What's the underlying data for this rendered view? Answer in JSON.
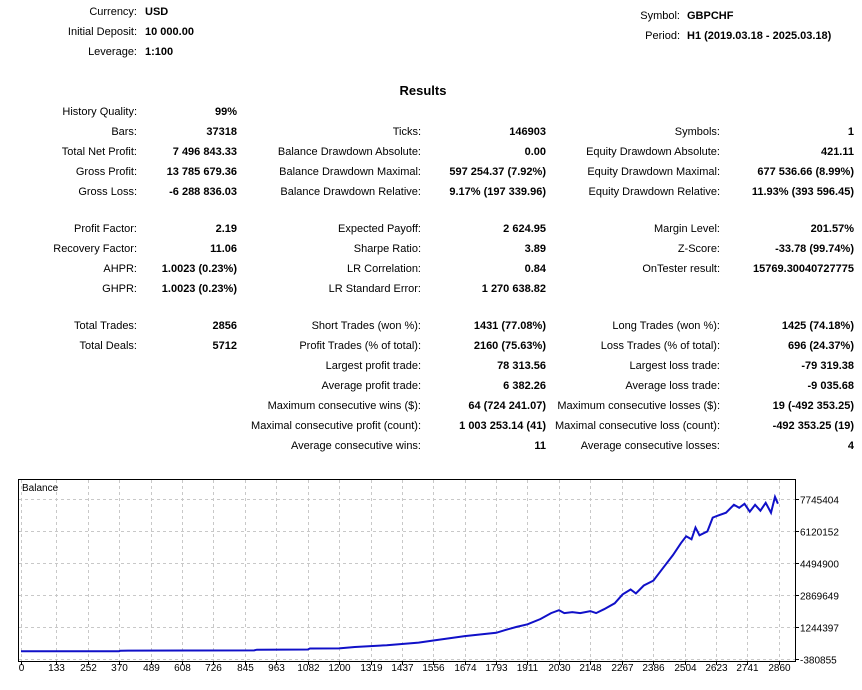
{
  "header": {
    "left": [
      {
        "label": "Currency:",
        "value": "USD"
      },
      {
        "label": "Initial Deposit:",
        "value": "10 000.00"
      },
      {
        "label": "Leverage:",
        "value": "1:100"
      }
    ],
    "right": [
      {
        "label": "Symbol:",
        "value": "GBPCHF"
      },
      {
        "label": "Period:",
        "value": "H1 (2019.03.18 - 2025.03.18)"
      }
    ]
  },
  "results_title": "Results",
  "sections": [
    [
      [
        [
          "History Quality:",
          "99%"
        ],
        null,
        null
      ],
      [
        [
          "Bars:",
          "37318"
        ],
        [
          "Ticks:",
          "146903"
        ],
        [
          "Symbols:",
          "1"
        ]
      ],
      [
        [
          "Total Net Profit:",
          "7 496 843.33"
        ],
        [
          "Balance Drawdown Absolute:",
          "0.00"
        ],
        [
          "Equity Drawdown Absolute:",
          "421.11"
        ]
      ],
      [
        [
          "Gross Profit:",
          "13 785 679.36"
        ],
        [
          "Balance Drawdown Maximal:",
          "597 254.37 (7.92%)"
        ],
        [
          "Equity Drawdown Maximal:",
          "677 536.66 (8.99%)"
        ]
      ],
      [
        [
          "Gross Loss:",
          "-6 288 836.03"
        ],
        [
          "Balance Drawdown Relative:",
          "9.17% (197 339.96)"
        ],
        [
          "Equity Drawdown Relative:",
          "11.93% (393 596.45)"
        ]
      ]
    ],
    [
      [
        [
          "Profit Factor:",
          "2.19"
        ],
        [
          "Expected Payoff:",
          "2 624.95"
        ],
        [
          "Margin Level:",
          "201.57%"
        ]
      ],
      [
        [
          "Recovery Factor:",
          "11.06"
        ],
        [
          "Sharpe Ratio:",
          "3.89"
        ],
        [
          "Z-Score:",
          "-33.78 (99.74%)"
        ]
      ],
      [
        [
          "AHPR:",
          "1.0023 (0.23%)"
        ],
        [
          "LR Correlation:",
          "0.84"
        ],
        [
          "OnTester result:",
          "15769.30040727775"
        ]
      ],
      [
        [
          "GHPR:",
          "1.0023 (0.23%)"
        ],
        [
          "LR Standard Error:",
          "1 270 638.82"
        ],
        null
      ]
    ],
    [
      [
        [
          "Total Trades:",
          "2856"
        ],
        [
          "Short Trades (won %):",
          "1431 (77.08%)"
        ],
        [
          "Long Trades (won %):",
          "1425 (74.18%)"
        ]
      ],
      [
        [
          "Total Deals:",
          "5712"
        ],
        [
          "Profit Trades (% of total):",
          "2160 (75.63%)"
        ],
        [
          "Loss Trades (% of total):",
          "696 (24.37%)"
        ]
      ],
      [
        null,
        [
          "Largest profit trade:",
          "78 313.56"
        ],
        [
          "Largest loss trade:",
          "-79 319.38"
        ]
      ],
      [
        null,
        [
          "Average profit trade:",
          "6 382.26"
        ],
        [
          "Average loss trade:",
          "-9 035.68"
        ]
      ],
      [
        null,
        [
          "Maximum consecutive wins ($):",
          "64 (724 241.07)"
        ],
        [
          "Maximum consecutive losses ($):",
          "19 (-492 353.25)"
        ]
      ],
      [
        null,
        [
          "Maximal consecutive profit (count):",
          "1 003 253.14 (41)"
        ],
        [
          "Maximal consecutive loss (count):",
          "-492 353.25 (19)"
        ]
      ],
      [
        null,
        [
          "Average consecutive wins:",
          "11"
        ],
        [
          "Average consecutive losses:",
          "4"
        ]
      ]
    ]
  ],
  "chart_data": {
    "type": "line",
    "title": "Balance",
    "xlabel": "",
    "ylabel": "",
    "x_ticks": [
      "0",
      "133",
      "252",
      "370",
      "489",
      "608",
      "726",
      "845",
      "963",
      "1082",
      "1200",
      "1319",
      "1437",
      "1556",
      "1674",
      "1793",
      "1911",
      "2030",
      "2148",
      "2267",
      "2386",
      "2504",
      "2623",
      "2741",
      "2860"
    ],
    "y_ticks": [
      "7745404",
      "6120152",
      "4494900",
      "2869649",
      "1244397",
      "-380855"
    ],
    "xlim": [
      0,
      2860
    ],
    "ylim": [
      -380855,
      7745404
    ],
    "grid": true,
    "colors": {
      "line": "#1010c8",
      "grid": "#c8c8c8"
    },
    "series": [
      {
        "points": [
          [
            0,
            10000
          ],
          [
            370,
            15000
          ],
          [
            375,
            40000
          ],
          [
            880,
            55000
          ],
          [
            890,
            90000
          ],
          [
            1082,
            100000
          ],
          [
            1090,
            150000
          ],
          [
            1200,
            160000
          ],
          [
            1260,
            230000
          ],
          [
            1380,
            320000
          ],
          [
            1437,
            380000
          ],
          [
            1500,
            450000
          ],
          [
            1556,
            560000
          ],
          [
            1620,
            680000
          ],
          [
            1674,
            780000
          ],
          [
            1740,
            880000
          ],
          [
            1793,
            950000
          ],
          [
            1830,
            1100000
          ],
          [
            1870,
            1250000
          ],
          [
            1911,
            1380000
          ],
          [
            1960,
            1650000
          ],
          [
            2000,
            1950000
          ],
          [
            2030,
            2100000
          ],
          [
            2050,
            1950000
          ],
          [
            2080,
            2000000
          ],
          [
            2110,
            1950000
          ],
          [
            2148,
            2050000
          ],
          [
            2170,
            1950000
          ],
          [
            2200,
            2150000
          ],
          [
            2240,
            2450000
          ],
          [
            2270,
            2900000
          ],
          [
            2300,
            3150000
          ],
          [
            2320,
            2950000
          ],
          [
            2350,
            3350000
          ],
          [
            2386,
            3600000
          ],
          [
            2420,
            4200000
          ],
          [
            2460,
            4900000
          ],
          [
            2490,
            5500000
          ],
          [
            2510,
            5850000
          ],
          [
            2530,
            5700000
          ],
          [
            2545,
            6300000
          ],
          [
            2560,
            5900000
          ],
          [
            2590,
            6100000
          ],
          [
            2610,
            6800000
          ],
          [
            2630,
            6900000
          ],
          [
            2660,
            7050000
          ],
          [
            2690,
            7450000
          ],
          [
            2710,
            7300000
          ],
          [
            2730,
            7500000
          ],
          [
            2750,
            7100000
          ],
          [
            2770,
            7450000
          ],
          [
            2790,
            7150000
          ],
          [
            2810,
            7550000
          ],
          [
            2830,
            7050000
          ],
          [
            2845,
            7850000
          ],
          [
            2856,
            7506843
          ]
        ]
      }
    ]
  }
}
